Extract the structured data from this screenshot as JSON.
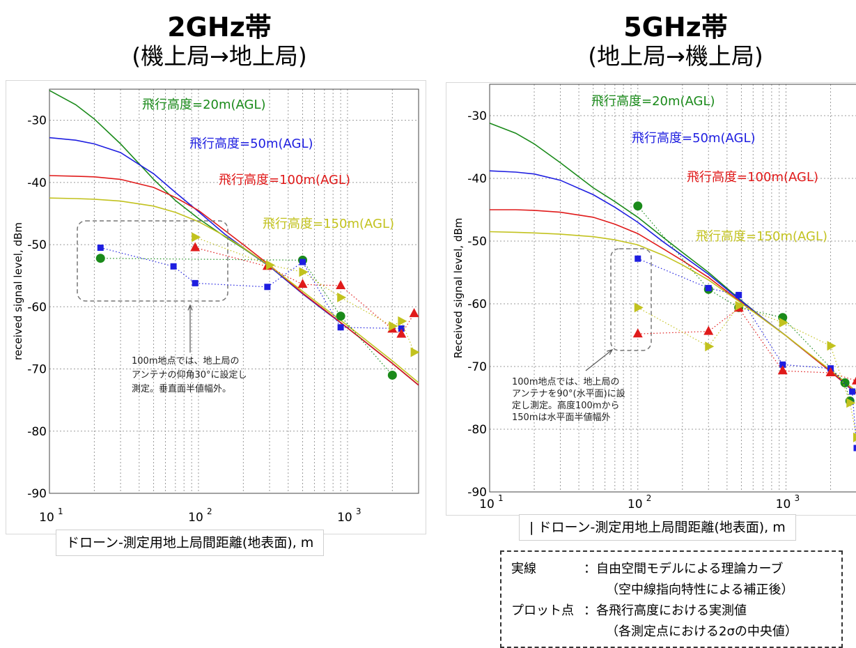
{
  "titles": {
    "left": {
      "main": "2GHz帯",
      "sub": "(機上局→地上局)"
    },
    "right": {
      "main": "5GHz帯",
      "sub": "(地上局→機上局)"
    }
  },
  "colors": {
    "alt20": "#1a8a1a",
    "alt50": "#1e1ee0",
    "alt100": "#e01a1a",
    "alt150": "#c2c21e",
    "grid": "#9a9a9a",
    "annotation": "#777777"
  },
  "icons": {
    "series20": "circle-marker",
    "series50": "square-marker",
    "series100": "triangle-up-marker",
    "series150": "triangle-right-marker"
  },
  "xlabels": {
    "left": "ドローン-測定用地上局間距離(地表面), m",
    "right": "| ドローン-測定用地上局間距離(地表面), m"
  },
  "legend": {
    "row1_key": "実線",
    "row1_val": "：自由空間モデルによる理論カーブ",
    "row2": "（空中線指向特性による補正後）",
    "row3_key": "プロット点",
    "row3_val": "：各飛行高度における実測値",
    "row4": "（各測定点における2σの中央値）"
  },
  "chart_data": [
    {
      "type": "line",
      "title": "2GHz帯 (機上局→地上局)",
      "xlabel": "ドローン-測定用地上局間距離(地表面), m",
      "ylabel": "received signal level, dBm",
      "xscale": "log",
      "xlim": [
        10,
        3000
      ],
      "ylim": [
        -90,
        -25
      ],
      "yticks": [
        -30,
        -40,
        -50,
        -60,
        -70,
        -80,
        -90
      ],
      "xticks": [
        {
          "value": 10,
          "base": "10",
          "exp": "1"
        },
        {
          "value": 100,
          "base": "10",
          "exp": "2"
        },
        {
          "value": 1000,
          "base": "10",
          "exp": "3"
        }
      ],
      "grid": true,
      "series_labels": [
        "飛行高度=20m(AGL)",
        "飛行高度=50m(AGL)",
        "飛行高度=100m(AGL)",
        "飛行高度=150m(AGL)"
      ],
      "curves": [
        {
          "color_key": "alt20",
          "x": [
            10,
            15,
            20,
            30,
            50,
            70,
            100,
            150,
            200,
            300,
            500,
            700,
            1000,
            2000,
            3000
          ],
          "y": [
            -25.2,
            -27.5,
            -29.8,
            -33.8,
            -39.5,
            -42.9,
            -45.8,
            -48.7,
            -50.6,
            -53.5,
            -57.9,
            -60.6,
            -63.4,
            -69.1,
            -72.6
          ]
        },
        {
          "color_key": "alt50",
          "x": [
            10,
            15,
            20,
            30,
            50,
            70,
            100,
            150,
            200,
            300,
            500,
            700,
            1000,
            2000,
            3000
          ],
          "y": [
            -32.8,
            -33.2,
            -33.8,
            -35.2,
            -38.6,
            -41.6,
            -44.7,
            -48.3,
            -50.5,
            -53.5,
            -57.9,
            -60.6,
            -63.4,
            -69.1,
            -72.6
          ]
        },
        {
          "color_key": "alt100",
          "x": [
            10,
            15,
            20,
            30,
            50,
            70,
            100,
            150,
            200,
            300,
            500,
            700,
            1000,
            2000,
            3000
          ],
          "y": [
            -38.9,
            -39.0,
            -39.1,
            -39.5,
            -40.8,
            -42.4,
            -44.5,
            -47.7,
            -50.0,
            -53.3,
            -57.8,
            -60.5,
            -63.4,
            -69.1,
            -72.6
          ]
        },
        {
          "color_key": "alt150",
          "x": [
            10,
            15,
            20,
            30,
            50,
            70,
            100,
            150,
            200,
            300,
            500,
            700,
            1000,
            2000,
            3000
          ],
          "y": [
            -42.5,
            -42.6,
            -42.7,
            -43.0,
            -43.8,
            -44.8,
            -46.3,
            -48.6,
            -50.5,
            -53.4,
            -57.5,
            -60.2,
            -63.0,
            -68.7,
            -72.2
          ]
        }
      ],
      "points": [
        {
          "color_key": "alt20",
          "marker": "circle",
          "x": [
            22,
            500,
            900,
            2000
          ],
          "y": [
            -52.2,
            -52.5,
            -61.5,
            -71.0
          ]
        },
        {
          "color_key": "alt50",
          "marker": "square",
          "x": [
            22,
            68,
            95,
            290,
            500,
            900,
            2300
          ],
          "y": [
            -50.5,
            -53.5,
            -56.2,
            -56.8,
            -52.8,
            -63.3,
            -63.5
          ]
        },
        {
          "color_key": "alt100",
          "marker": "triangle-up",
          "x": [
            95,
            290,
            500,
            900,
            2000,
            2300,
            2800
          ],
          "y": [
            -50.5,
            -53.5,
            -56.4,
            -56.6,
            -63.6,
            -64.4,
            -61.1
          ]
        },
        {
          "color_key": "alt150",
          "marker": "triangle-right",
          "x": [
            95,
            300,
            500,
            900,
            2000,
            2300,
            2800
          ],
          "y": [
            -48.8,
            -53.3,
            -54.4,
            -58.5,
            -63.1,
            -62.3,
            -67.3
          ]
        }
      ],
      "annotation": "100m地点では、地上局の\nアンテナの仰角30°に設定し\n測定。垂直面半値幅外。"
    },
    {
      "type": "line",
      "title": "5GHz帯 (地上局→機上局)",
      "xlabel": "ドローン-測定用地上局間距離(地表面), m",
      "ylabel": "Received signal level, dBm",
      "xscale": "log",
      "xlim": [
        10,
        3000
      ],
      "ylim": [
        -90,
        -25
      ],
      "yticks": [
        -30,
        -40,
        -50,
        -60,
        -70,
        -80,
        -90
      ],
      "xticks": [
        {
          "value": 10,
          "base": "10",
          "exp": "1"
        },
        {
          "value": 100,
          "base": "10",
          "exp": "2"
        },
        {
          "value": 1000,
          "base": "10",
          "exp": "3"
        }
      ],
      "grid": true,
      "series_labels": [
        "飛行高度=20m(AGL)",
        "飛行高度=50m(AGL)",
        "飛行高度=100m(AGL)",
        "飛行高度=150m(AGL)"
      ],
      "curves": [
        {
          "color_key": "alt20",
          "x": [
            10,
            15,
            20,
            30,
            50,
            70,
            100,
            150,
            200,
            300,
            500,
            700,
            1000,
            2000,
            3000
          ],
          "y": [
            -31.2,
            -32.8,
            -34.5,
            -37.5,
            -41.5,
            -43.7,
            -46.2,
            -49.5,
            -51.8,
            -55.0,
            -59.5,
            -62.3,
            -65.1,
            -70.8,
            -74.3
          ]
        },
        {
          "color_key": "alt50",
          "x": [
            10,
            15,
            20,
            30,
            50,
            70,
            100,
            150,
            200,
            300,
            500,
            700,
            1000,
            2000,
            3000
          ],
          "y": [
            -38.8,
            -39.0,
            -39.3,
            -40.3,
            -42.6,
            -44.6,
            -47.0,
            -50.2,
            -52.3,
            -55.3,
            -59.6,
            -62.3,
            -65.1,
            -70.8,
            -74.3
          ]
        },
        {
          "color_key": "alt100",
          "x": [
            10,
            15,
            20,
            30,
            50,
            70,
            100,
            150,
            200,
            300,
            500,
            700,
            1000,
            2000,
            3000
          ],
          "y": [
            -45.0,
            -45.0,
            -45.1,
            -45.4,
            -46.2,
            -47.3,
            -48.8,
            -51.3,
            -53.1,
            -55.8,
            -59.8,
            -62.4,
            -65.1,
            -70.8,
            -74.3
          ]
        },
        {
          "color_key": "alt150",
          "x": [
            10,
            15,
            20,
            30,
            50,
            70,
            100,
            150,
            200,
            300,
            500,
            700,
            1000,
            2000,
            3000
          ],
          "y": [
            -48.5,
            -48.6,
            -48.7,
            -48.9,
            -49.3,
            -49.8,
            -50.6,
            -52.3,
            -53.8,
            -56.2,
            -59.9,
            -62.4,
            -65.1,
            -70.6,
            -74.0
          ]
        }
      ],
      "points": [
        {
          "color_key": "alt20",
          "marker": "circle",
          "x": [
            100,
            300,
            480,
            950,
            2500,
            2700
          ],
          "y": [
            -44.4,
            -57.7,
            -60.6,
            -62.2,
            -72.6,
            -75.5
          ]
        },
        {
          "color_key": "alt50",
          "marker": "square",
          "x": [
            100,
            300,
            480,
            950,
            2000,
            2800,
            3000
          ],
          "y": [
            -52.8,
            -57.5,
            -58.6,
            -69.7,
            -70.3,
            -74.0,
            -83.0
          ]
        },
        {
          "color_key": "alt100",
          "marker": "triangle-up",
          "x": [
            100,
            300,
            480,
            950,
            2000,
            3000
          ],
          "y": [
            -64.8,
            -64.4,
            -60.7,
            -70.7,
            -71.0,
            -72.3
          ]
        },
        {
          "color_key": "alt150",
          "marker": "triangle-right",
          "x": [
            100,
            300,
            480,
            950,
            2000,
            2700,
            3000
          ],
          "y": [
            -60.6,
            -66.8,
            -60.3,
            -63.0,
            -66.7,
            -75.8,
            -81.3
          ]
        }
      ],
      "annotation": "100m地点では、地上局の\nアンテナを90°(水平面)に設\n定し測定。高度100mから\n150mは水平面半値幅外"
    }
  ]
}
